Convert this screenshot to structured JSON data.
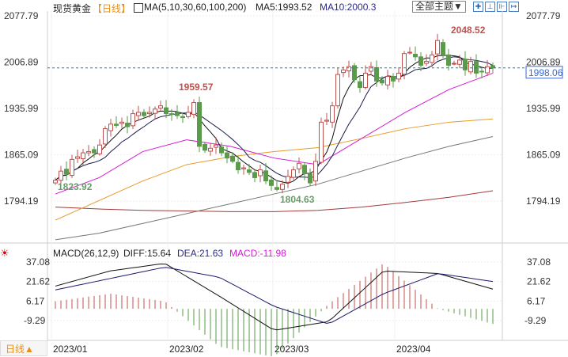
{
  "header": {
    "title": "现货黄金",
    "period": "【日线】",
    "ma_label": "MA(5,10,30,60,100,200)",
    "ma5": "MA5:1993.52",
    "ma10": "MA10:2000.3",
    "theme_button": "全部主题▼",
    "tool_icons": [
      "crosshair-icon",
      "zoom-in-icon",
      "zoom-out-icon",
      "go-latest-icon"
    ]
  },
  "macd_header": {
    "label": "MACD(26,12,9)",
    "diff": "DIFF:15.64",
    "dea": "DEA:21.63",
    "macd": "MACD:-11.98"
  },
  "footer": {
    "period_button": "日线▲"
  },
  "colors": {
    "up": "#c0504d",
    "down": "#5a9a4a",
    "ma30": "#d61ad6",
    "ma60": "#e89a2a",
    "ma100": "#777777",
    "ma200": "#a33a3a",
    "dea": "#1a1a6a"
  },
  "chart_data": [
    {
      "type": "candlestick",
      "title": "现货黄金 日线",
      "yticks": [
        "2077.79",
        "2006.89",
        "1935.99",
        "1865.09",
        "1794.19"
      ],
      "ylim": [
        1730,
        2095
      ],
      "xticks": [
        "2023/01",
        "2023/02",
        "2023/03",
        "2023/04"
      ],
      "xtick_index": [
        0,
        21,
        40,
        62
      ],
      "closes": [
        1826,
        1840,
        1835,
        1858,
        1862,
        1868,
        1870,
        1868,
        1880,
        1905,
        1912,
        1910,
        1915,
        1908,
        1928,
        1930,
        1925,
        1930,
        1935,
        1940,
        1928,
        1927,
        1925,
        1922,
        1930,
        1945,
        1878,
        1872,
        1875,
        1880,
        1868,
        1860,
        1855,
        1842,
        1845,
        1838,
        1830,
        1842,
        1825,
        1818,
        1812,
        1820,
        1832,
        1842,
        1852,
        1836,
        1822,
        1855,
        1915,
        1918,
        1940,
        1988,
        1995,
        2000,
        1980,
        1968,
        1990,
        2000,
        1978,
        1975,
        1985,
        1978,
        1990,
        2020,
        2022,
        2015,
        2002,
        2008,
        2018,
        2040,
        2018,
        2002,
        2005,
        2010,
        1995,
        2008,
        1990,
        1992,
        2000,
        1998
      ],
      "annotations": {
        "high1": "1959.57",
        "low1": "1823.92",
        "low2": "1804.63",
        "high2": "2048.52",
        "last": "1998.06"
      },
      "ma_sparse": {
        "ma30": [
          1805,
          1830,
          1870,
          1888,
          1878,
          1860,
          1850,
          1890,
          1930,
          1965,
          1990
        ],
        "ma60": [
          1765,
          1795,
          1825,
          1850,
          1862,
          1870,
          1876,
          1890,
          1905,
          1915,
          1920
        ],
        "ma100": [
          1735,
          1745,
          1760,
          1775,
          1790,
          1805,
          1820,
          1840,
          1860,
          1878,
          1893
        ],
        "ma200": [
          1785,
          1782,
          1780,
          1779,
          1778,
          1778,
          1780,
          1785,
          1792,
          1800,
          1810
        ]
      }
    },
    {
      "type": "macd",
      "yticks": [
        "37.08",
        "21.62",
        "6.17",
        "-9.29"
      ],
      "ylim": [
        -25,
        45
      ],
      "diff": [
        18,
        30,
        36,
        10,
        -17,
        -10,
        30,
        28,
        15.64
      ],
      "dea": [
        15,
        24,
        33,
        25,
        2,
        -12,
        12,
        28,
        21.63
      ]
    }
  ]
}
